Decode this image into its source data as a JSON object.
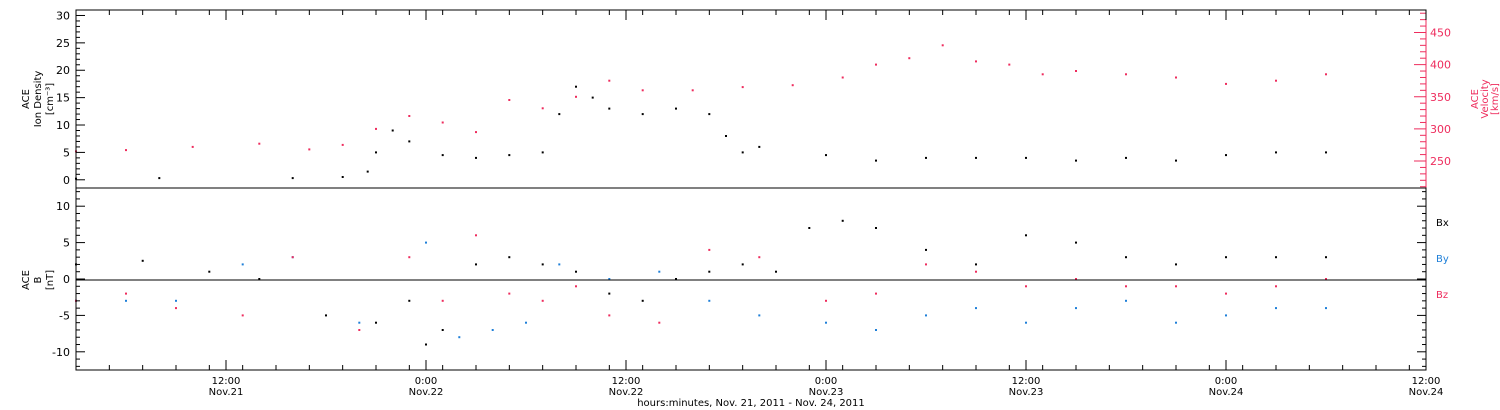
{
  "chart_data": [
    {
      "type": "scatter",
      "xlabel": "hours:minutes, Nov. 21, 2011 - Nov. 24, 2011",
      "xlim": [
        "2011-11-21T03:00",
        "2011-11-24T12:00"
      ],
      "x_ticks": [
        {
          "time": "2011-11-21T12:00",
          "label": "12:00",
          "sublabel": "Nov.21"
        },
        {
          "time": "2011-11-22T00:00",
          "label": "0:00",
          "sublabel": "Nov.22"
        },
        {
          "time": "2011-11-22T12:00",
          "label": "12:00",
          "sublabel": "Nov.22"
        },
        {
          "time": "2011-11-23T00:00",
          "label": "0:00",
          "sublabel": "Nov.23"
        },
        {
          "time": "2011-11-23T12:00",
          "label": "12:00",
          "sublabel": "Nov.23"
        },
        {
          "time": "2011-11-24T00:00",
          "label": "0:00",
          "sublabel": "Nov.24"
        },
        {
          "time": "2011-11-24T12:00",
          "label": "12:00",
          "sublabel": "Nov.24"
        }
      ],
      "ylabel_left": [
        "ACE",
        "Ion Density",
        "[cm⁻³]"
      ],
      "ylim_left": [
        -1.5,
        31
      ],
      "yticks_left": [
        0,
        5,
        10,
        15,
        20,
        25,
        30
      ],
      "ylabel_right": [
        "ACE",
        "Velocity",
        "[km/s]"
      ],
      "ylim_right": [
        208,
        485
      ],
      "yticks_right": [
        250,
        300,
        350,
        400,
        450
      ],
      "grid": false,
      "series": [
        {
          "color": "#000000",
          "axis": "left",
          "x": [
            "2011-11-21T03:00",
            "2011-11-21T08:00",
            "2011-11-21T16:00",
            "2011-11-21T19:00",
            "2011-11-21T20:30",
            "2011-11-21T21:00",
            "2011-11-21T22:00",
            "2011-11-21T23:00",
            "2011-11-22T01:00",
            "2011-11-22T03:00",
            "2011-11-22T05:00",
            "2011-11-22T07:00",
            "2011-11-22T08:00",
            "2011-11-22T09:00",
            "2011-11-22T10:00",
            "2011-11-22T11:00",
            "2011-11-22T13:00",
            "2011-11-22T15:00",
            "2011-11-22T17:00",
            "2011-11-22T18:00",
            "2011-11-22T19:00",
            "2011-11-22T20:00",
            "2011-11-23T00:00",
            "2011-11-23T03:00",
            "2011-11-23T06:00",
            "2011-11-23T09:00",
            "2011-11-23T12:00",
            "2011-11-23T15:00",
            "2011-11-23T18:00",
            "2011-11-23T21:00",
            "2011-11-24T00:00",
            "2011-11-24T03:00",
            "2011-11-24T06:00"
          ],
          "values": [
            0.2,
            0.3,
            0.3,
            0.5,
            1.5,
            5,
            9,
            7,
            4.5,
            4,
            4.5,
            5,
            12,
            17,
            15,
            13,
            12,
            13,
            12,
            8,
            5,
            6,
            4.5,
            3.5,
            4,
            4,
            4,
            3.5,
            4,
            3.5,
            4.5,
            5,
            5
          ]
        },
        {
          "color": "#ee2c5d",
          "axis": "right",
          "x": [
            "2011-11-21T03:00",
            "2011-11-21T06:00",
            "2011-11-21T10:00",
            "2011-11-21T14:00",
            "2011-11-21T17:00",
            "2011-11-21T19:00",
            "2011-11-21T21:00",
            "2011-11-21T23:00",
            "2011-11-22T01:00",
            "2011-11-22T03:00",
            "2011-11-22T05:00",
            "2011-11-22T07:00",
            "2011-11-22T09:00",
            "2011-11-22T11:00",
            "2011-11-22T13:00",
            "2011-11-22T16:00",
            "2011-11-22T19:00",
            "2011-11-22T22:00",
            "2011-11-23T01:00",
            "2011-11-23T03:00",
            "2011-11-23T05:00",
            "2011-11-23T07:00",
            "2011-11-23T09:00",
            "2011-11-23T11:00",
            "2011-11-23T13:00",
            "2011-11-23T15:00",
            "2011-11-23T18:00",
            "2011-11-23T21:00",
            "2011-11-24T00:00",
            "2011-11-24T03:00",
            "2011-11-24T06:00"
          ],
          "values": [
            265,
            267,
            272,
            277,
            268,
            275,
            300,
            320,
            310,
            295,
            345,
            332,
            350,
            375,
            360,
            360,
            365,
            368,
            380,
            400,
            410,
            430,
            405,
            400,
            385,
            390,
            385,
            380,
            370,
            375,
            385
          ]
        }
      ]
    },
    {
      "type": "scatter",
      "xlim": [
        "2011-11-21T03:00",
        "2011-11-24T12:00"
      ],
      "ylabel": [
        "ACE",
        "B",
        "[nT]"
      ],
      "ylim": [
        -12.5,
        12.5
      ],
      "yticks": [
        -10,
        -5,
        0,
        5,
        10
      ],
      "zero_line": true,
      "grid": false,
      "legend": "right",
      "series": [
        {
          "name": "Bx",
          "color": "#000000",
          "x": [
            "2011-11-21T03:00",
            "2011-11-21T07:00",
            "2011-11-21T11:00",
            "2011-11-21T14:00",
            "2011-11-21T18:00",
            "2011-11-21T21:00",
            "2011-11-21T23:00",
            "2011-11-22T00:00",
            "2011-11-22T01:00",
            "2011-11-22T03:00",
            "2011-11-22T05:00",
            "2011-11-22T07:00",
            "2011-11-22T09:00",
            "2011-11-22T11:00",
            "2011-11-22T13:00",
            "2011-11-22T15:00",
            "2011-11-22T17:00",
            "2011-11-22T19:00",
            "2011-11-22T21:00",
            "2011-11-22T23:00",
            "2011-11-23T01:00",
            "2011-11-23T03:00",
            "2011-11-23T06:00",
            "2011-11-23T09:00",
            "2011-11-23T12:00",
            "2011-11-23T15:00",
            "2011-11-23T18:00",
            "2011-11-23T21:00",
            "2011-11-24T00:00",
            "2011-11-24T03:00",
            "2011-11-24T06:00"
          ],
          "values": [
            2,
            2.5,
            1,
            0,
            -5,
            -6,
            -3,
            -9,
            -7,
            2,
            3,
            2,
            1,
            -2,
            -3,
            0,
            1,
            2,
            1,
            7,
            8,
            7,
            4,
            2,
            6,
            5,
            3,
            2,
            3,
            3,
            3
          ]
        },
        {
          "name": "By",
          "color": "#1e7fd8",
          "x": [
            "2011-11-21T03:00",
            "2011-11-21T06:00",
            "2011-11-21T09:00",
            "2011-11-21T13:00",
            "2011-11-21T16:00",
            "2011-11-21T20:00",
            "2011-11-22T00:00",
            "2011-11-22T02:00",
            "2011-11-22T04:00",
            "2011-11-22T06:00",
            "2011-11-22T08:00",
            "2011-11-22T11:00",
            "2011-11-22T14:00",
            "2011-11-22T17:00",
            "2011-11-22T20:00",
            "2011-11-23T00:00",
            "2011-11-23T03:00",
            "2011-11-23T06:00",
            "2011-11-23T09:00",
            "2011-11-23T12:00",
            "2011-11-23T15:00",
            "2011-11-23T18:00",
            "2011-11-23T21:00",
            "2011-11-24T00:00",
            "2011-11-24T03:00",
            "2011-11-24T06:00"
          ],
          "values": [
            -3,
            -3,
            -3,
            2,
            3,
            -6,
            5,
            -8,
            -7,
            -6,
            2,
            0,
            1,
            -3,
            -5,
            -6,
            -7,
            -5,
            -4,
            -6,
            -4,
            -3,
            -6,
            -5,
            -4,
            -4
          ]
        },
        {
          "name": "Bz",
          "color": "#ee2c5d",
          "x": [
            "2011-11-21T03:00",
            "2011-11-21T06:00",
            "2011-11-21T09:00",
            "2011-11-21T13:00",
            "2011-11-21T16:00",
            "2011-11-21T20:00",
            "2011-11-21T23:00",
            "2011-11-22T01:00",
            "2011-11-22T03:00",
            "2011-11-22T05:00",
            "2011-11-22T07:00",
            "2011-11-22T09:00",
            "2011-11-22T11:00",
            "2011-11-22T14:00",
            "2011-11-22T17:00",
            "2011-11-22T20:00",
            "2011-11-23T00:00",
            "2011-11-23T03:00",
            "2011-11-23T06:00",
            "2011-11-23T09:00",
            "2011-11-23T12:00",
            "2011-11-23T15:00",
            "2011-11-23T18:00",
            "2011-11-23T21:00",
            "2011-11-24T00:00",
            "2011-11-24T03:00",
            "2011-11-24T06:00"
          ],
          "values": [
            -3,
            -2,
            -4,
            -5,
            3,
            -7,
            3,
            -3,
            6,
            -2,
            -3,
            -1,
            -5,
            -6,
            4,
            3,
            -3,
            -2,
            2,
            1,
            -1,
            0,
            -1,
            -1,
            -2,
            -1,
            0
          ]
        }
      ]
    }
  ]
}
